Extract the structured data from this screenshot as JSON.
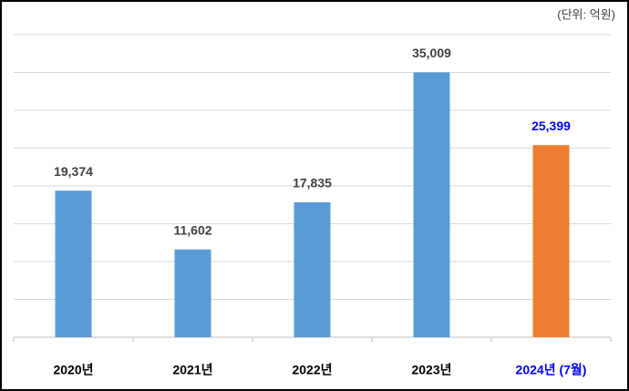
{
  "chart_data": {
    "type": "bar",
    "unit_note": "(단위: 억원)",
    "categories": [
      "2020년",
      "2021년",
      "2022년",
      "2023년",
      "2024년 (7월)"
    ],
    "values": [
      19374,
      11602,
      17835,
      35009,
      25399
    ],
    "value_labels": [
      "19,374",
      "11,602",
      "17,835",
      "35,009",
      "25,399"
    ],
    "colors": [
      "#5b9bd5",
      "#5b9bd5",
      "#5b9bd5",
      "#5b9bd5",
      "#ed7d31"
    ],
    "label_colors": [
      "#000000",
      "#000000",
      "#000000",
      "#000000",
      "#0000ff"
    ],
    "value_label_colors": [
      "#404040",
      "#404040",
      "#404040",
      "#404040",
      "#0000ff"
    ],
    "ylim": [
      0,
      40000
    ],
    "yticks": [
      0,
      5000,
      10000,
      15000,
      20000,
      25000,
      30000,
      35000,
      40000
    ],
    "grid": true
  }
}
